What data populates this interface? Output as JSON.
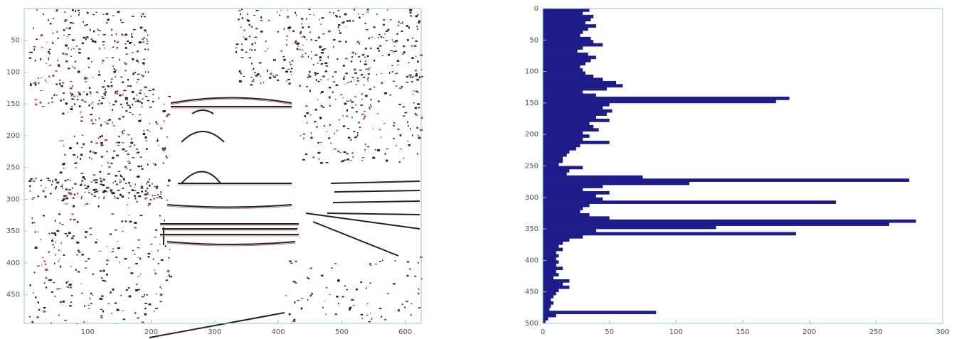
{
  "chart_data": [
    {
      "type": "image",
      "xlim": [
        0,
        625
      ],
      "ylim": [
        0,
        495
      ],
      "y_inverted": true,
      "xticks": [
        100,
        200,
        300,
        400,
        500,
        600
      ],
      "yticks": [
        50,
        100,
        150,
        200,
        250,
        300,
        350,
        400,
        450
      ]
    },
    {
      "type": "barh",
      "color": "#1c1c8a",
      "xlim": [
        0,
        300
      ],
      "ylim": [
        0,
        500
      ],
      "y_inverted": true,
      "xticks": [
        0,
        50,
        100,
        150,
        200,
        250,
        300
      ],
      "yticks": [
        0,
        50,
        100,
        150,
        200,
        250,
        300,
        350,
        400,
        450,
        500
      ],
      "rows": [
        0,
        5,
        10,
        15,
        20,
        25,
        30,
        35,
        40,
        45,
        50,
        55,
        60,
        65,
        70,
        75,
        80,
        85,
        90,
        95,
        100,
        105,
        110,
        115,
        120,
        125,
        130,
        135,
        140,
        145,
        150,
        155,
        160,
        165,
        170,
        175,
        180,
        185,
        190,
        195,
        200,
        205,
        210,
        215,
        220,
        225,
        230,
        235,
        240,
        245,
        250,
        255,
        260,
        265,
        270,
        275,
        280,
        285,
        290,
        295,
        300,
        305,
        310,
        315,
        320,
        325,
        330,
        335,
        340,
        345,
        350,
        355,
        360,
        365,
        370,
        375,
        380,
        385,
        390,
        395,
        400,
        405,
        410,
        415,
        420,
        425,
        430,
        435,
        440,
        445,
        450,
        455,
        460,
        465,
        470,
        475,
        480,
        485,
        490,
        495
      ],
      "values": [
        35,
        30,
        38,
        36,
        32,
        40,
        34,
        30,
        28,
        36,
        38,
        45,
        30,
        26,
        34,
        40,
        36,
        32,
        28,
        30,
        32,
        38,
        45,
        55,
        60,
        48,
        30,
        40,
        185,
        175,
        50,
        45,
        52,
        48,
        40,
        50,
        35,
        38,
        42,
        30,
        35,
        30,
        50,
        28,
        25,
        20,
        18,
        15,
        15,
        12,
        30,
        20,
        18,
        75,
        275,
        110,
        45,
        30,
        50,
        40,
        45,
        220,
        35,
        30,
        28,
        35,
        50,
        280,
        260,
        130,
        40,
        190,
        30,
        20,
        15,
        12,
        15,
        10,
        12,
        10,
        12,
        10,
        15,
        10,
        12,
        8,
        20,
        15,
        20,
        12,
        10,
        8,
        6,
        8,
        6,
        5,
        85,
        10,
        4,
        2
      ]
    }
  ]
}
